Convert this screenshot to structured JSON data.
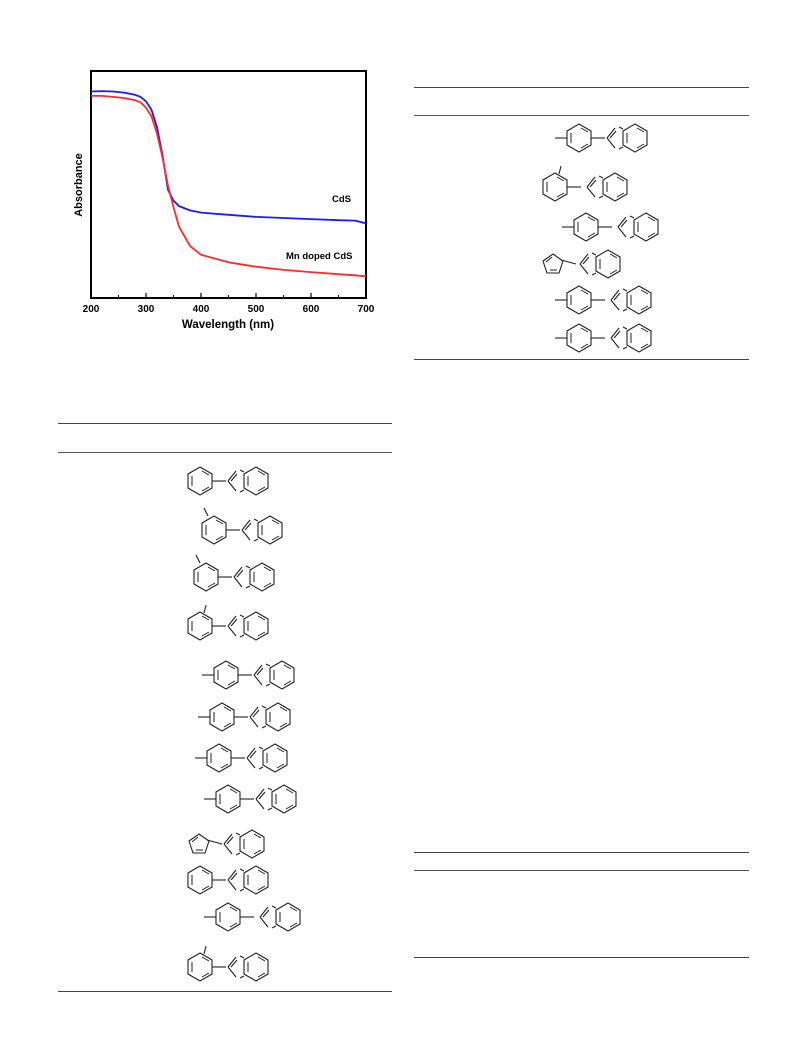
{
  "chart_data": {
    "type": "line",
    "xlabel": "Wavelength (nm)",
    "ylabel": "Absorbance",
    "xlim": [
      200,
      700
    ],
    "xticks": [
      200,
      300,
      400,
      500,
      600,
      700
    ],
    "yticks_shown": false,
    "grid": false,
    "series": [
      {
        "name": "CdS",
        "color": "#1a1aff",
        "x": [
          200,
          220,
          240,
          260,
          280,
          290,
          300,
          310,
          320,
          330,
          340,
          350,
          360,
          380,
          400,
          450,
          500,
          550,
          600,
          650,
          680,
          700
        ],
        "y": [
          0.955,
          0.957,
          0.955,
          0.95,
          0.94,
          0.93,
          0.91,
          0.87,
          0.79,
          0.66,
          0.5,
          0.45,
          0.425,
          0.405,
          0.395,
          0.385,
          0.375,
          0.37,
          0.365,
          0.36,
          0.358,
          0.345
        ]
      },
      {
        "name": "Mn doped CdS",
        "color": "#ff2a2a",
        "x": [
          200,
          220,
          240,
          260,
          280,
          290,
          300,
          310,
          320,
          330,
          340,
          350,
          360,
          380,
          400,
          450,
          500,
          550,
          600,
          650,
          680,
          700
        ],
        "y": [
          0.935,
          0.935,
          0.93,
          0.925,
          0.915,
          0.905,
          0.88,
          0.84,
          0.76,
          0.65,
          0.52,
          0.42,
          0.33,
          0.24,
          0.2,
          0.165,
          0.145,
          0.13,
          0.12,
          0.11,
          0.105,
          0.1
        ]
      }
    ],
    "annotations": [
      "CdS",
      "Mn doped CdS"
    ]
  },
  "colors": {
    "rule": "#555555",
    "structure": "#222222"
  },
  "tables": {
    "left": {
      "structures": [
        {
          "icon": "phenyl-benzothiazole-icon"
        },
        {
          "icon": "meta-methylphenyl-benzothiazole-icon"
        },
        {
          "icon": "meta-methylphenyl-benzoxazole-icon"
        },
        {
          "icon": "ortho-methylphenyl-benzothiazole-icon"
        },
        {
          "icon": "para-substituted-phenyl-benzothiazole-icon"
        },
        {
          "icon": "para-substituted-phenyl-benzimidazole-icon"
        },
        {
          "icon": "para-substituted-phenyl-benzoxazole-icon"
        },
        {
          "icon": "para-substituted-phenyl-benzothiazole-icon"
        },
        {
          "icon": "thienyl-benzimidazole-icon"
        },
        {
          "icon": "phenyl-benzoxazole-icon"
        },
        {
          "icon": "para-substituted-phenyl-benzimidazole-icon"
        },
        {
          "icon": "ortho-methylphenyl-benzothiazole-icon"
        }
      ]
    },
    "right": {
      "structures": [
        {
          "icon": "para-substituted-phenyl-benzothiazole-icon"
        },
        {
          "icon": "ortho-methylphenyl-benzimidazole-icon"
        },
        {
          "icon": "para-substituted-phenyl-benzoxazole-icon"
        },
        {
          "icon": "thienyl-benzothiazole-icon"
        },
        {
          "icon": "para-substituted-phenyl-benzimidazole-icon"
        },
        {
          "icon": "para-substituted-phenyl-benzothiazole-icon"
        }
      ]
    }
  }
}
